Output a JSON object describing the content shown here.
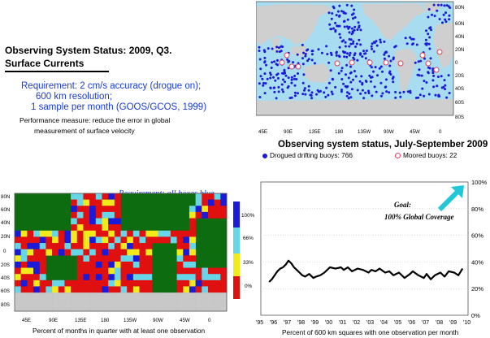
{
  "header": {
    "title": "Observing System Status:  2009, Q3.",
    "subtitle": "Surface Currents",
    "requirement_lines": [
      "Requirement: 2 cm/s accuracy (drogue on);",
      "600 km resolution;",
      "1 sample per month (GOOS/GCOS, 1999)"
    ],
    "performance_lines": [
      "Performance measure: reduce the error in global",
      "measurement of surface velocity"
    ]
  },
  "colors": {
    "ocean": "#a8dcf0",
    "land": "#cfcfcf",
    "drifter": "#1a1ad8",
    "moored": "#e04060",
    "grid_land": "#0d6b10",
    "grid_blue": "#1a1ad8",
    "grid_cyan": "#66d6e8",
    "grid_yellow": "#f2ea1a",
    "grid_red": "#e01010",
    "grid_gray": "#c8c8c8",
    "goal_arrow": "#22c8d8"
  },
  "chart_data": [
    {
      "type": "scatter",
      "title": "Observing system status, July-September 2009",
      "x_ticks": [
        "45E",
        "90E",
        "135E",
        "180",
        "135W",
        "90W",
        "45W",
        "0"
      ],
      "y_ticks": [
        "80N",
        "60N",
        "40N",
        "20N",
        "0",
        "20S",
        "40S",
        "60S",
        "80S"
      ],
      "series": [
        {
          "name": "Drogued drifting buoys",
          "count": 766
        },
        {
          "name": "Moored buoys",
          "count": 22
        }
      ],
      "legend_labels": [
        "Drogued drifting buoys: 766",
        "Moored buoys: 22"
      ]
    },
    {
      "type": "heatmap",
      "title": "Requirement: all boxes blue",
      "xlabel": "Percent of months in quarter with at least one observation",
      "x_ticks": [
        "45E",
        "90E",
        "135E",
        "180",
        "135W",
        "90W",
        "45W",
        "0"
      ],
      "y_ticks": [
        "80N",
        "60N",
        "40N",
        "20N",
        "0",
        "20S",
        "40S",
        "60S",
        "80S"
      ],
      "colorbar_ticks": [
        "100%",
        "66%",
        "33%",
        "0%"
      ]
    },
    {
      "type": "line",
      "xlabel": "Percent of 600 km squares with one observation per month",
      "x_ticks": [
        "'95",
        "'96",
        "'97",
        "'98",
        "'99",
        "'00",
        "'01",
        "'02",
        "'03",
        "'04",
        "'05",
        "'06",
        "'07",
        "'08",
        "'09",
        "'10"
      ],
      "y_ticks": [
        "0%",
        "20%",
        "40%",
        "60%",
        "80%",
        "100%"
      ],
      "ylim": [
        0,
        100
      ],
      "x": [
        1995.6,
        1995.8,
        1996.0,
        1996.2,
        1996.4,
        1996.6,
        1996.8,
        1997.0,
        1997.2,
        1997.4,
        1997.6,
        1997.8,
        1998.0,
        1998.2,
        1998.5,
        1998.8,
        1999.0,
        1999.3,
        1999.6,
        2000.0,
        2000.4,
        2000.8,
        2001.0,
        2001.3,
        2001.6,
        2002.0,
        2002.4,
        2002.8,
        2003.0,
        2003.3,
        2003.6,
        2004.0,
        2004.3,
        2004.6,
        2005.0,
        2005.4,
        2005.8,
        2006.0,
        2006.4,
        2006.8,
        2007.0,
        2007.3,
        2007.6,
        2008.0,
        2008.3,
        2008.6,
        2009.0,
        2009.3,
        2009.6
      ],
      "y": [
        25,
        27,
        30,
        33,
        35,
        36,
        38,
        41,
        39,
        36,
        34,
        32,
        30,
        29,
        31,
        28,
        29,
        30,
        32,
        36,
        35,
        36,
        34,
        36,
        33,
        35,
        34,
        32,
        34,
        33,
        35,
        32,
        33,
        30,
        32,
        28,
        31,
        33,
        30,
        28,
        31,
        27,
        30,
        32,
        29,
        33,
        32,
        30,
        35
      ],
      "annotation_lines": [
        "Goal:",
        "100% Global Coverage"
      ]
    }
  ]
}
